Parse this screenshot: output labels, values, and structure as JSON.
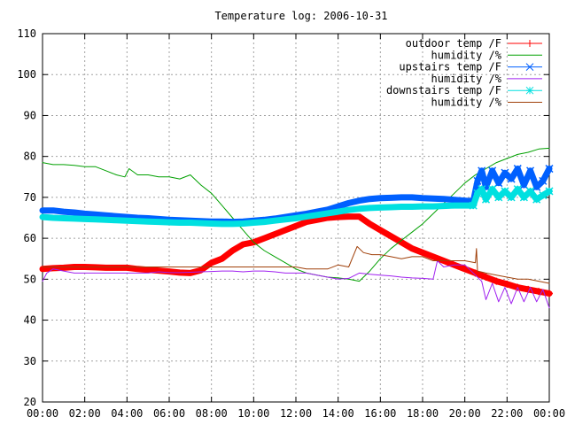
{
  "chart_data": {
    "type": "line",
    "title": "Temperature log: 2006-10-31",
    "xlabel": "",
    "ylabel": "",
    "x_unit": "hour",
    "xlim": [
      0,
      24
    ],
    "ylim": [
      20,
      110
    ],
    "grid": true,
    "legend_position": "top-right",
    "x_tick_labels": [
      "00:00",
      "02:00",
      "04:00",
      "06:00",
      "08:00",
      "10:00",
      "12:00",
      "14:00",
      "16:00",
      "18:00",
      "20:00",
      "22:00",
      "00:00"
    ],
    "y_tick_labels": [
      "20",
      "30",
      "40",
      "50",
      "60",
      "70",
      "80",
      "90",
      "100",
      "110"
    ],
    "series": [
      {
        "name": "outdoor temp /F",
        "color": "#ff0000",
        "marker": "plus",
        "x": [
          0,
          0.5,
          1,
          1.5,
          2,
          2.5,
          3,
          3.5,
          4,
          4.5,
          5,
          5.5,
          6,
          6.5,
          7,
          7.5,
          8,
          8.5,
          9,
          9.5,
          10,
          10.5,
          11,
          11.5,
          12,
          12.5,
          13,
          13.5,
          14,
          14.5,
          15,
          15.5,
          16,
          16.5,
          17,
          17.5,
          18,
          18.5,
          19,
          19.5,
          20,
          20.5,
          21,
          21.5,
          22,
          22.5,
          23,
          23.5,
          24
        ],
        "y": [
          52.5,
          52.7,
          52.8,
          53.0,
          53.0,
          52.9,
          52.8,
          52.8,
          52.8,
          52.5,
          52.3,
          52.1,
          51.9,
          51.6,
          51.5,
          52.2,
          54.0,
          55.0,
          57.0,
          58.5,
          59.0,
          60.0,
          61.0,
          62.0,
          63.0,
          64.0,
          64.5,
          65.0,
          65.2,
          65.3,
          65.3,
          63.5,
          62.0,
          60.5,
          59.0,
          57.5,
          56.5,
          55.5,
          54.5,
          53.5,
          52.5,
          51.5,
          50.5,
          49.5,
          48.8,
          48.0,
          47.5,
          47.0,
          46.5
        ]
      },
      {
        "name": "humidity /%",
        "color": "#00a000",
        "marker": "none",
        "x": [
          0,
          0.5,
          1,
          1.5,
          2,
          2.5,
          3,
          3.5,
          3.9,
          4.1,
          4.5,
          5,
          5.5,
          6,
          6.5,
          7,
          7.5,
          8,
          8.5,
          9,
          9.5,
          10,
          10.5,
          11,
          11.5,
          12,
          12.5,
          13,
          13.5,
          14,
          14.5,
          15,
          15.5,
          16,
          16.5,
          17,
          17.5,
          18,
          18.5,
          19,
          19.5,
          20,
          20.5,
          21,
          21.5,
          22,
          22.5,
          23,
          23.5,
          24
        ],
        "y": [
          78.5,
          78.0,
          78.0,
          77.8,
          77.5,
          77.5,
          76.5,
          75.5,
          75.0,
          77.0,
          75.5,
          75.5,
          75.0,
          75.0,
          74.5,
          75.5,
          73.0,
          71.0,
          68.0,
          65.0,
          62.0,
          59.0,
          57.0,
          55.5,
          54.0,
          52.5,
          51.5,
          51.0,
          50.5,
          50.3,
          50.0,
          49.5,
          52.0,
          55.0,
          57.5,
          59.5,
          61.5,
          63.5,
          66.0,
          68.5,
          71.0,
          73.5,
          75.5,
          77.0,
          78.5,
          79.5,
          80.5,
          81.0,
          81.8,
          82.0
        ]
      },
      {
        "name": "upstairs temp /F",
        "color": "#0060ff",
        "marker": "x",
        "x": [
          0,
          0.5,
          1,
          1.5,
          2,
          2.5,
          3,
          3.5,
          4,
          4.5,
          5,
          5.5,
          6,
          6.5,
          7,
          7.5,
          8,
          8.5,
          9,
          9.5,
          10,
          10.5,
          11,
          11.5,
          12,
          12.5,
          13,
          13.5,
          14,
          14.5,
          15,
          15.5,
          16,
          16.5,
          17,
          17.5,
          18,
          18.5,
          19,
          19.5,
          20,
          20.4,
          20.6,
          20.8,
          21.0,
          21.3,
          21.6,
          21.9,
          22.2,
          22.5,
          22.8,
          23.1,
          23.4,
          23.7,
          24
        ],
        "y": [
          66.8,
          66.8,
          66.5,
          66.3,
          66.0,
          65.8,
          65.6,
          65.4,
          65.2,
          65.0,
          64.9,
          64.7,
          64.5,
          64.4,
          64.3,
          64.2,
          64.1,
          64.1,
          64.0,
          64.1,
          64.3,
          64.5,
          64.8,
          65.2,
          65.6,
          66.0,
          66.5,
          67.0,
          67.8,
          68.6,
          69.2,
          69.6,
          69.8,
          69.9,
          70.0,
          70.0,
          69.8,
          69.7,
          69.6,
          69.4,
          69.2,
          69.0,
          74.0,
          76.5,
          72.5,
          76.5,
          73.5,
          76.0,
          74.5,
          77.0,
          73.0,
          76.5,
          72.5,
          74.0,
          77.0
        ]
      },
      {
        "name": "humidity /%",
        "color": "#a020f0",
        "marker": "none",
        "x": [
          0,
          0.2,
          0.5,
          1,
          1.5,
          2,
          2.5,
          3,
          3.5,
          4,
          4.5,
          5,
          5.5,
          6,
          6.5,
          7,
          7.5,
          8,
          8.5,
          9,
          9.5,
          10,
          10.5,
          11,
          11.5,
          12,
          12.5,
          13,
          13.5,
          14,
          14.5,
          15,
          15.5,
          16,
          16.5,
          17,
          17.5,
          18,
          18.5,
          18.7,
          19.0,
          19.5,
          20,
          20.5,
          20.8,
          21.0,
          21.3,
          21.6,
          21.9,
          22.2,
          22.5,
          22.8,
          23.1,
          23.4,
          23.7,
          24
        ],
        "y": [
          49.5,
          51.5,
          52.5,
          52.0,
          51.5,
          51.5,
          51.5,
          51.5,
          51.5,
          51.5,
          51.5,
          51.5,
          51.8,
          51.6,
          51.6,
          51.7,
          51.8,
          51.9,
          52.0,
          52.0,
          51.8,
          52.0,
          52.0,
          51.8,
          51.5,
          51.5,
          51.5,
          51.0,
          50.5,
          50.0,
          50.2,
          51.5,
          51.2,
          51.0,
          50.8,
          50.5,
          50.3,
          50.2,
          50.0,
          54.5,
          53.0,
          53.5,
          53.5,
          51.0,
          49.5,
          45.0,
          49.0,
          44.5,
          48.0,
          44.0,
          48.0,
          44.5,
          48.0,
          44.5,
          47.5,
          43.0
        ]
      },
      {
        "name": "downstairs temp /F",
        "color": "#00e0e0",
        "marker": "star",
        "x": [
          0,
          0.5,
          1,
          1.5,
          2,
          2.5,
          3,
          3.5,
          4,
          4.5,
          5,
          5.5,
          6,
          6.5,
          7,
          7.5,
          8,
          8.5,
          9,
          9.5,
          10,
          10.5,
          11,
          11.5,
          12,
          12.5,
          13,
          13.5,
          14,
          14.5,
          15,
          15.5,
          16,
          16.5,
          17,
          17.5,
          18,
          18.5,
          19,
          19.5,
          20,
          20.4,
          20.6,
          20.8,
          21.0,
          21.3,
          21.6,
          21.9,
          22.2,
          22.5,
          22.8,
          23.1,
          23.4,
          23.7,
          24
        ],
        "y": [
          65.2,
          65.0,
          64.9,
          64.8,
          64.7,
          64.6,
          64.5,
          64.4,
          64.3,
          64.2,
          64.1,
          64.0,
          63.9,
          63.8,
          63.8,
          63.7,
          63.6,
          63.5,
          63.5,
          63.6,
          63.8,
          64.0,
          64.3,
          64.6,
          64.9,
          65.3,
          65.7,
          66.1,
          66.5,
          66.9,
          67.2,
          67.4,
          67.5,
          67.6,
          67.7,
          67.7,
          67.8,
          67.8,
          67.9,
          68.0,
          68.0,
          68.0,
          71.0,
          72.0,
          69.5,
          72.0,
          70.0,
          71.5,
          70.0,
          72.0,
          70.0,
          71.5,
          69.5,
          70.5,
          71.5
        ]
      },
      {
        "name": "humidity /%",
        "color": "#a0400a",
        "marker": "none",
        "x": [
          0,
          0.5,
          1,
          1.5,
          2,
          2.5,
          3,
          3.5,
          4,
          4.5,
          5,
          5.5,
          6,
          6.5,
          7,
          7.5,
          8,
          8.5,
          9,
          9.5,
          10,
          10.5,
          11,
          11.5,
          12,
          12.5,
          13,
          13.5,
          14,
          14.5,
          14.9,
          15.2,
          15.6,
          16.0,
          16.5,
          17,
          17.5,
          18,
          18.5,
          19,
          19.5,
          20,
          20.5,
          20.55,
          20.6,
          21,
          21.5,
          22,
          22.5,
          23,
          23.5,
          24
        ],
        "y": [
          53.0,
          53.0,
          53.0,
          53.0,
          53.0,
          53.0,
          53.0,
          53.0,
          53.0,
          53.0,
          53.0,
          53.0,
          53.0,
          53.0,
          53.0,
          53.0,
          53.0,
          53.0,
          53.0,
          53.0,
          53.0,
          53.0,
          53.0,
          53.0,
          53.0,
          52.5,
          52.5,
          52.5,
          53.5,
          53.0,
          58.0,
          56.5,
          56.0,
          56.0,
          55.5,
          55.0,
          55.5,
          55.5,
          54.5,
          54.5,
          54.5,
          54.5,
          54.0,
          57.5,
          52.0,
          51.5,
          51.0,
          50.5,
          50.0,
          50.0,
          49.5,
          49.0
        ]
      }
    ]
  }
}
